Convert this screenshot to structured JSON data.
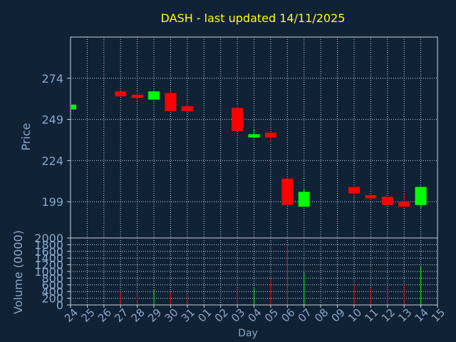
{
  "chart_data": {
    "type": "candlestick",
    "title": "DASH - last updated 14/11/2025",
    "xlabel": "Day",
    "ylabel": "Price",
    "volume_label": "Volume (0000)",
    "price_ylim": [
      177,
      299
    ],
    "price_ticks": [
      199,
      224,
      249,
      274
    ],
    "volume_ylim": [
      0,
      2000
    ],
    "volume_ticks": [
      0,
      200,
      400,
      600,
      800,
      1000,
      1200,
      1400,
      1600,
      1800,
      2000
    ],
    "x_tick_labels": [
      "24",
      "25",
      "26",
      "27",
      "28",
      "29",
      "30",
      "31",
      "01",
      "02",
      "03",
      "04",
      "05",
      "06",
      "07",
      "08",
      "09",
      "10",
      "11",
      "12",
      "13",
      "14",
      "15"
    ],
    "grid": true,
    "candles": [
      {
        "day": "24",
        "open": 255,
        "close": 258,
        "high": 258,
        "low": 255,
        "volume": 0
      },
      {
        "day": "27",
        "open": 266,
        "close": 263,
        "high": 266,
        "low": 263,
        "volume": 400
      },
      {
        "day": "28",
        "open": 264,
        "close": 262,
        "high": 266,
        "low": 260,
        "volume": 300
      },
      {
        "day": "29",
        "open": 261,
        "close": 266,
        "high": 266,
        "low": 261,
        "volume": 450
      },
      {
        "day": "30",
        "open": 265,
        "close": 254,
        "high": 266,
        "low": 254,
        "volume": 380
      },
      {
        "day": "31",
        "open": 257,
        "close": 254,
        "high": 261,
        "low": 254,
        "volume": 300
      },
      {
        "day": "03",
        "open": 256,
        "close": 242,
        "high": 258,
        "low": 242,
        "volume": 500
      },
      {
        "day": "04",
        "open": 238,
        "close": 240,
        "high": 243,
        "low": 238,
        "volume": 500
      },
      {
        "day": "05",
        "open": 241,
        "close": 238,
        "high": 241,
        "low": 235,
        "volume": 750
      },
      {
        "day": "06",
        "open": 213,
        "close": 197,
        "high": 213,
        "low": 197,
        "volume": 1800
      },
      {
        "day": "07",
        "open": 196,
        "close": 205,
        "high": 207,
        "low": 196,
        "volume": 950
      },
      {
        "day": "10",
        "open": 208,
        "close": 204,
        "high": 208,
        "low": 202,
        "volume": 650
      },
      {
        "day": "11",
        "open": 203,
        "close": 201,
        "high": 204,
        "low": 200,
        "volume": 500
      },
      {
        "day": "12",
        "open": 202,
        "close": 197,
        "high": 202,
        "low": 197,
        "volume": 550
      },
      {
        "day": "13",
        "open": 199,
        "close": 196,
        "high": 204,
        "low": 196,
        "volume": 600
      },
      {
        "day": "14",
        "open": 197,
        "close": 208,
        "high": 208,
        "low": 195,
        "volume": 1150
      }
    ],
    "colors": {
      "background": "#0f2236",
      "title": "#ffff00",
      "axis_text": "#8aa8c8",
      "frame": "#c8d0dc",
      "grid": "#c8d0dc",
      "up": "#00ff00",
      "down": "#ff0000"
    }
  }
}
